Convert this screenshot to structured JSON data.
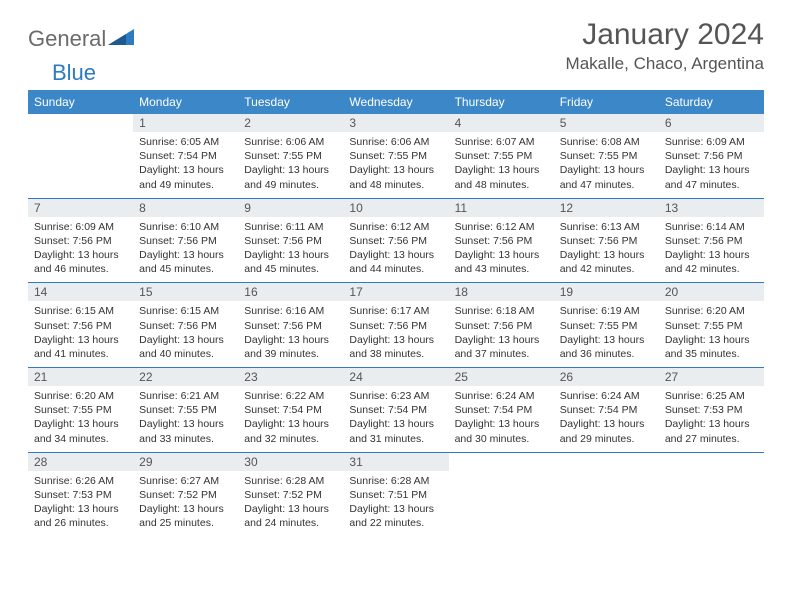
{
  "logo": {
    "part1": "General",
    "part2": "Blue"
  },
  "title": "January 2024",
  "location": "Makalle, Chaco, Argentina",
  "colors": {
    "header_bg": "#3b87c8",
    "header_text": "#ffffff",
    "rule": "#2d7bc0",
    "daynum_bg": "#e9edf0",
    "text": "#333333",
    "logo_gray": "#6b6b6b",
    "logo_blue": "#2d7bc0"
  },
  "weekdays": [
    "Sunday",
    "Monday",
    "Tuesday",
    "Wednesday",
    "Thursday",
    "Friday",
    "Saturday"
  ],
  "weeks": [
    [
      null,
      {
        "n": "1",
        "sr": "6:05 AM",
        "ss": "7:54 PM",
        "dl": "13 hours and 49 minutes."
      },
      {
        "n": "2",
        "sr": "6:06 AM",
        "ss": "7:55 PM",
        "dl": "13 hours and 49 minutes."
      },
      {
        "n": "3",
        "sr": "6:06 AM",
        "ss": "7:55 PM",
        "dl": "13 hours and 48 minutes."
      },
      {
        "n": "4",
        "sr": "6:07 AM",
        "ss": "7:55 PM",
        "dl": "13 hours and 48 minutes."
      },
      {
        "n": "5",
        "sr": "6:08 AM",
        "ss": "7:55 PM",
        "dl": "13 hours and 47 minutes."
      },
      {
        "n": "6",
        "sr": "6:09 AM",
        "ss": "7:56 PM",
        "dl": "13 hours and 47 minutes."
      }
    ],
    [
      {
        "n": "7",
        "sr": "6:09 AM",
        "ss": "7:56 PM",
        "dl": "13 hours and 46 minutes."
      },
      {
        "n": "8",
        "sr": "6:10 AM",
        "ss": "7:56 PM",
        "dl": "13 hours and 45 minutes."
      },
      {
        "n": "9",
        "sr": "6:11 AM",
        "ss": "7:56 PM",
        "dl": "13 hours and 45 minutes."
      },
      {
        "n": "10",
        "sr": "6:12 AM",
        "ss": "7:56 PM",
        "dl": "13 hours and 44 minutes."
      },
      {
        "n": "11",
        "sr": "6:12 AM",
        "ss": "7:56 PM",
        "dl": "13 hours and 43 minutes."
      },
      {
        "n": "12",
        "sr": "6:13 AM",
        "ss": "7:56 PM",
        "dl": "13 hours and 42 minutes."
      },
      {
        "n": "13",
        "sr": "6:14 AM",
        "ss": "7:56 PM",
        "dl": "13 hours and 42 minutes."
      }
    ],
    [
      {
        "n": "14",
        "sr": "6:15 AM",
        "ss": "7:56 PM",
        "dl": "13 hours and 41 minutes."
      },
      {
        "n": "15",
        "sr": "6:15 AM",
        "ss": "7:56 PM",
        "dl": "13 hours and 40 minutes."
      },
      {
        "n": "16",
        "sr": "6:16 AM",
        "ss": "7:56 PM",
        "dl": "13 hours and 39 minutes."
      },
      {
        "n": "17",
        "sr": "6:17 AM",
        "ss": "7:56 PM",
        "dl": "13 hours and 38 minutes."
      },
      {
        "n": "18",
        "sr": "6:18 AM",
        "ss": "7:56 PM",
        "dl": "13 hours and 37 minutes."
      },
      {
        "n": "19",
        "sr": "6:19 AM",
        "ss": "7:55 PM",
        "dl": "13 hours and 36 minutes."
      },
      {
        "n": "20",
        "sr": "6:20 AM",
        "ss": "7:55 PM",
        "dl": "13 hours and 35 minutes."
      }
    ],
    [
      {
        "n": "21",
        "sr": "6:20 AM",
        "ss": "7:55 PM",
        "dl": "13 hours and 34 minutes."
      },
      {
        "n": "22",
        "sr": "6:21 AM",
        "ss": "7:55 PM",
        "dl": "13 hours and 33 minutes."
      },
      {
        "n": "23",
        "sr": "6:22 AM",
        "ss": "7:54 PM",
        "dl": "13 hours and 32 minutes."
      },
      {
        "n": "24",
        "sr": "6:23 AM",
        "ss": "7:54 PM",
        "dl": "13 hours and 31 minutes."
      },
      {
        "n": "25",
        "sr": "6:24 AM",
        "ss": "7:54 PM",
        "dl": "13 hours and 30 minutes."
      },
      {
        "n": "26",
        "sr": "6:24 AM",
        "ss": "7:54 PM",
        "dl": "13 hours and 29 minutes."
      },
      {
        "n": "27",
        "sr": "6:25 AM",
        "ss": "7:53 PM",
        "dl": "13 hours and 27 minutes."
      }
    ],
    [
      {
        "n": "28",
        "sr": "6:26 AM",
        "ss": "7:53 PM",
        "dl": "13 hours and 26 minutes."
      },
      {
        "n": "29",
        "sr": "6:27 AM",
        "ss": "7:52 PM",
        "dl": "13 hours and 25 minutes."
      },
      {
        "n": "30",
        "sr": "6:28 AM",
        "ss": "7:52 PM",
        "dl": "13 hours and 24 minutes."
      },
      {
        "n": "31",
        "sr": "6:28 AM",
        "ss": "7:51 PM",
        "dl": "13 hours and 22 minutes."
      },
      null,
      null,
      null
    ]
  ],
  "labels": {
    "sunrise": "Sunrise:",
    "sunset": "Sunset:",
    "daylight": "Daylight:"
  }
}
